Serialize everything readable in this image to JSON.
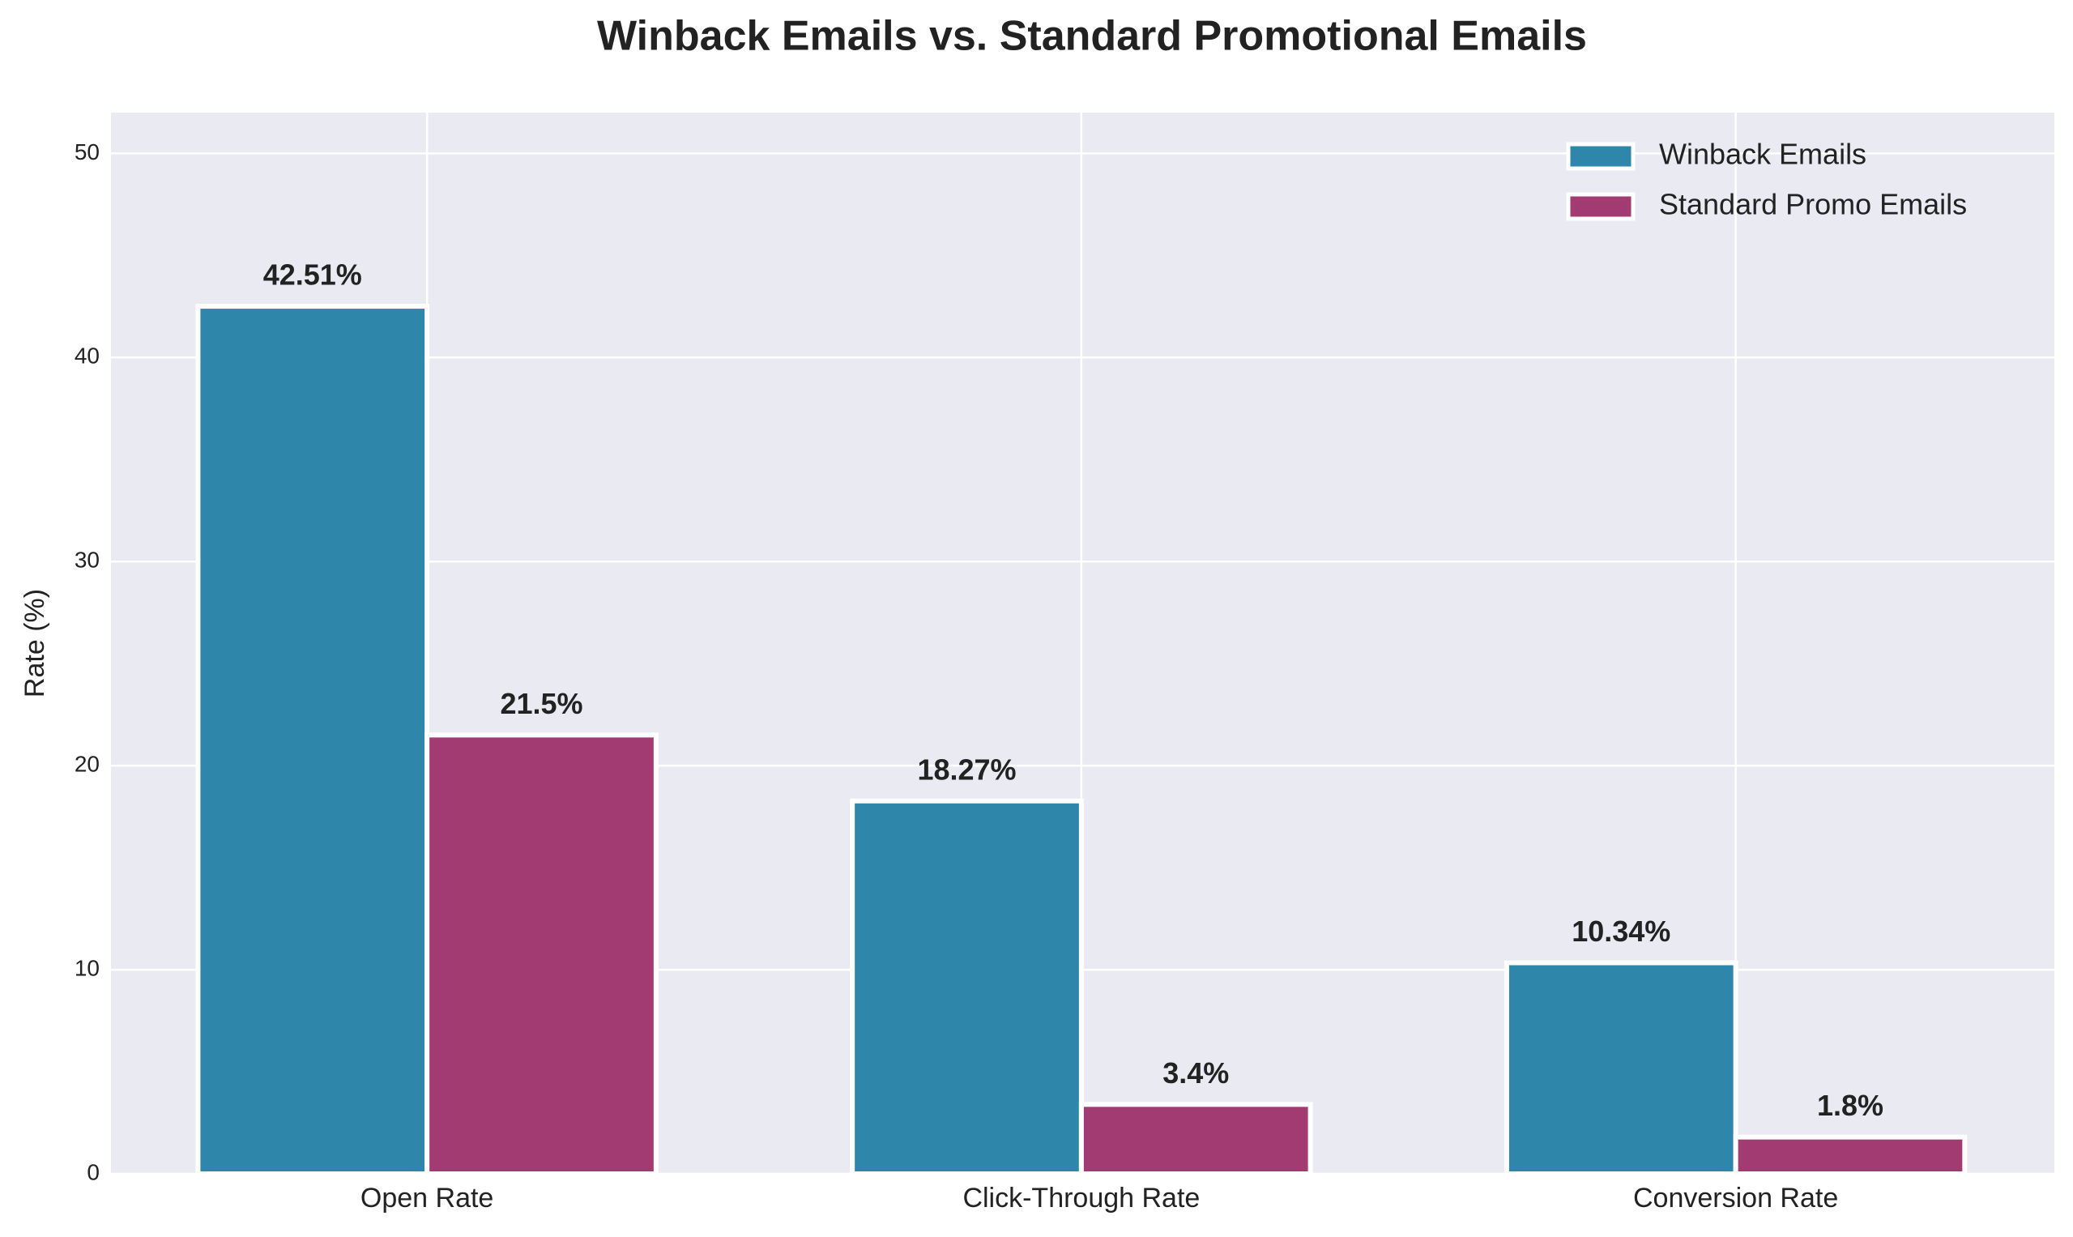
{
  "chart_data": {
    "type": "bar",
    "title": "Winback Emails vs. Standard Promotional Emails",
    "y_label": "Rate (%)",
    "categories": [
      "Open Rate",
      "Click-Through Rate",
      "Conversion Rate"
    ],
    "series": [
      {
        "name": "Winback Emails",
        "color": "#2E86AB",
        "values": [
          42.51,
          18.27,
          10.34
        ],
        "value_labels": [
          "42.51%",
          "18.27%",
          "10.34%"
        ]
      },
      {
        "name": "Standard Promo Emails",
        "color": "#A23B72",
        "values": [
          21.5,
          3.4,
          1.8
        ],
        "value_labels": [
          "21.5%",
          "3.4%",
          "1.8%"
        ]
      }
    ],
    "ylim": [
      0,
      52
    ],
    "yticks": [
      0,
      10,
      20,
      30,
      40,
      50
    ],
    "grid": true,
    "legend": "upper right"
  }
}
